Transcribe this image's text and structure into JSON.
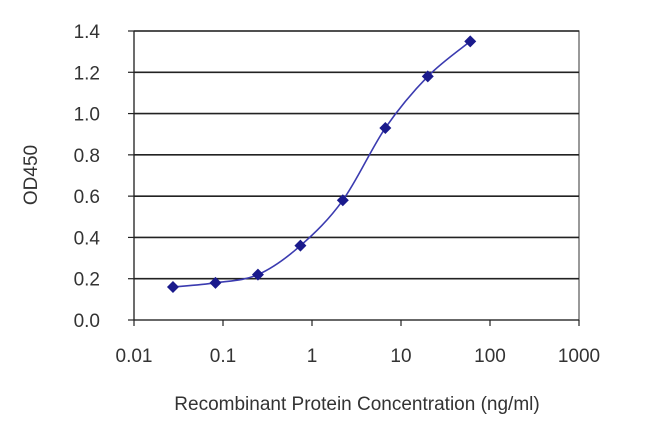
{
  "chart_data": {
    "type": "scatter",
    "xlabel": "Recombinant Protein Concentration (ng/ml)",
    "ylabel": "OD450",
    "xscale": "log",
    "xlim": [
      0.01,
      1000
    ],
    "ylim": [
      0,
      1.4
    ],
    "x_ticks": [
      0.01,
      0.1,
      1,
      10,
      100,
      1000
    ],
    "x_tick_labels": [
      "0.01",
      "0.1",
      "1",
      "10",
      "100",
      "1000"
    ],
    "y_ticks": [
      0,
      0.2,
      0.4,
      0.6,
      0.8,
      1.0,
      1.2,
      1.4
    ],
    "y_tick_labels": [
      "0.0",
      "0.2",
      "0.4",
      "0.6",
      "0.8",
      "1.0",
      "1.2",
      "1.4"
    ],
    "grid": "horizontal",
    "series": [
      {
        "x": [
          0.0274,
          0.0823,
          0.247,
          0.741,
          2.22,
          6.67,
          20,
          60
        ],
        "y": [
          0.16,
          0.18,
          0.22,
          0.36,
          0.58,
          0.93,
          1.18,
          1.35
        ],
        "marker": "diamond",
        "color": "#1a1a8c",
        "fit_curve": true
      }
    ]
  }
}
